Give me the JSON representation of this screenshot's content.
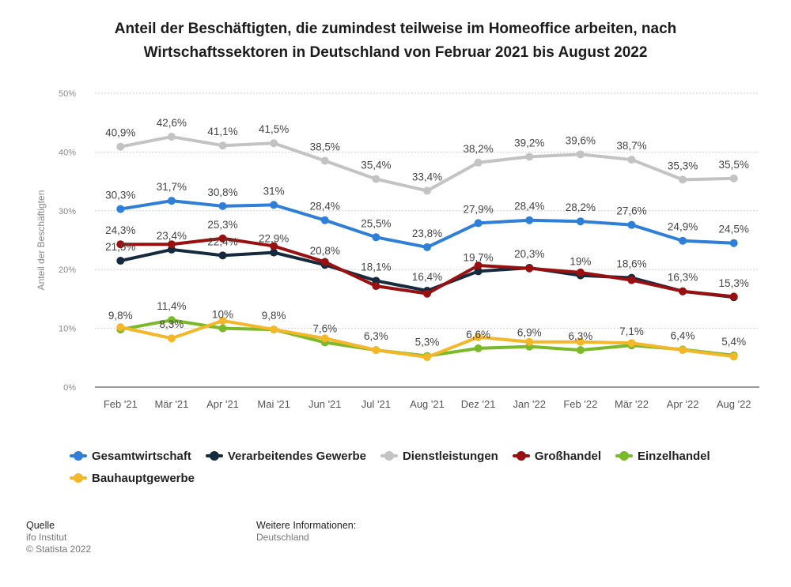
{
  "title_line1": "Anteil der Beschäftigten, die zumindest teilweise im Homeoffice arbeiten, nach",
  "title_line2": "Wirtschaftssektoren in Deutschland von Februar 2021 bis August 2022",
  "chart_data": {
    "type": "line",
    "ylabel": "Anteil der Beschäftigten",
    "xlabel": "",
    "ylim": [
      0,
      50
    ],
    "yticks": [
      "0%",
      "10%",
      "20%",
      "30%",
      "40%",
      "50%"
    ],
    "grid": true,
    "categories": [
      "Feb '21",
      "Mär '21",
      "Apr '21",
      "Mai '21",
      "Jun '21",
      "Jul '21",
      "Aug '21",
      "Dez '21",
      "Jan '22",
      "Feb '22",
      "Mär '22",
      "Apr '22",
      "Aug '22"
    ],
    "series": [
      {
        "name": "Gesamtwirtschaft",
        "color": "#2f7ed8",
        "values": [
          30.3,
          31.7,
          30.8,
          31,
          28.4,
          25.5,
          23.8,
          27.9,
          28.4,
          28.2,
          27.6,
          24.9,
          24.5
        ],
        "labels": [
          "30,3%",
          "31,7%",
          "30,8%",
          "31%",
          "28,4%",
          "25,5%",
          "23,8%",
          "27,9%",
          "28,4%",
          "28,2%",
          "27,6%",
          "24,9%",
          "24,5%"
        ]
      },
      {
        "name": "Verarbeitendes Gewerbe",
        "color": "#162a3e",
        "values": [
          21.5,
          23.4,
          22.4,
          22.9,
          20.8,
          18.1,
          16.4,
          19.7,
          20.3,
          19,
          18.6,
          16.3,
          15.3
        ],
        "labels": [
          "21,5%",
          "23,4%",
          "22,4%",
          "22,9%",
          "20,8%",
          "18,1%",
          "16,4%",
          "19,7%",
          "20,3%",
          "19%",
          "18,6%",
          "16,3%",
          "15,3%"
        ]
      },
      {
        "name": "Dienstleistungen",
        "color": "#c3c3c3",
        "values": [
          40.9,
          42.6,
          41.1,
          41.5,
          38.5,
          35.4,
          33.4,
          38.2,
          39.2,
          39.6,
          38.7,
          35.3,
          35.5
        ],
        "labels": [
          "40,9%",
          "42,6%",
          "41,1%",
          "41,5%",
          "38,5%",
          "35,4%",
          "33,4%",
          "38,2%",
          "39,2%",
          "39,6%",
          "38,7%",
          "35,3%",
          "35,5%"
        ]
      },
      {
        "name": "Großhandel",
        "color": "#9a1010",
        "values": [
          24.3,
          24.3,
          25.3,
          24,
          21.3,
          17.2,
          15.9,
          20.7,
          20.2,
          19.5,
          18.2,
          16.3,
          15.4
        ],
        "labels": [
          "24,3%",
          "",
          "25,3%",
          "",
          "",
          "",
          "",
          "",
          "",
          "",
          "",
          "",
          ""
        ]
      },
      {
        "name": "Einzelhandel",
        "color": "#7ab928",
        "values": [
          9.8,
          11.4,
          10,
          9.8,
          7.6,
          6.3,
          5.3,
          6.6,
          6.9,
          6.3,
          7.1,
          6.4,
          5.4
        ],
        "labels": [
          "9,8%",
          "11,4%",
          "10%",
          "9,8%",
          "7,6%",
          "6,3%",
          "5,3%",
          "6,6%",
          "6,9%",
          "6,3%",
          "7,1%",
          "6,4%",
          "5,4%"
        ]
      },
      {
        "name": "Bauhauptgewerbe",
        "color": "#f4b72a",
        "values": [
          10.2,
          8.3,
          11.3,
          9.8,
          8.3,
          6.3,
          5.1,
          8.5,
          7.7,
          7.7,
          7.5,
          6.3,
          5.2
        ],
        "labels": [
          "",
          "8,3%",
          "",
          "",
          "",
          "",
          "",
          "",
          "",
          "",
          "",
          "",
          ""
        ]
      }
    ]
  },
  "source": {
    "heading": "Quelle",
    "lines": [
      "ifo Institut",
      "© Statista 2022"
    ]
  },
  "info": {
    "heading": "Weitere Informationen:",
    "lines": [
      "Deutschland"
    ]
  }
}
